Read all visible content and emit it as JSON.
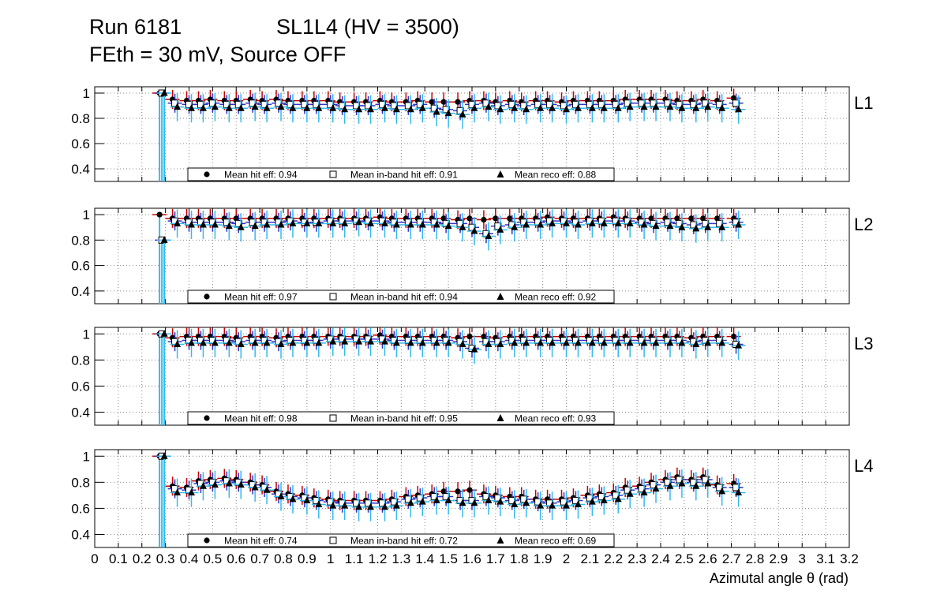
{
  "header": {
    "run": "Run 6181",
    "chamber": "SL1L4 (HV = 3500)",
    "conditions": "FEth = 30 mV, Source OFF"
  },
  "colors": {
    "hit": "#cc0000",
    "inband": "#3333cc",
    "reco": "#33bbee",
    "marker": "#000000",
    "grid": "#888888"
  },
  "chart_data": {
    "type": "scatter",
    "title": "Run 6181   SL1L4 (HV = 3500)   FEth = 30 mV, Source OFF",
    "xlabel": "Azimutal angle θ (rad)",
    "xlim": [
      0,
      3.2
    ],
    "ylim": [
      0.3,
      1.05
    ],
    "x_ticks": [
      "0",
      "0.1",
      "0.2",
      "0.3",
      "0.4",
      "0.5",
      "0.6",
      "0.7",
      "0.8",
      "0.9",
      "1",
      "1.1",
      "1.2",
      "1.3",
      "1.4",
      "1.5",
      "1.6",
      "1.7",
      "1.8",
      "1.9",
      "2",
      "2.1",
      "2.2",
      "2.3",
      "2.4",
      "2.5",
      "2.6",
      "2.7",
      "2.8",
      "2.9",
      "3",
      "3.1",
      "3.2"
    ],
    "y_ticks": [
      "0.4",
      "0.6",
      "0.8",
      "1"
    ],
    "grid": true,
    "x": [
      0.285,
      0.34,
      0.4,
      0.45,
      0.5,
      0.56,
      0.61,
      0.67,
      0.72,
      0.78,
      0.83,
      0.89,
      0.94,
      1.0,
      1.05,
      1.11,
      1.16,
      1.22,
      1.27,
      1.33,
      1.38,
      1.44,
      1.49,
      1.55,
      1.6,
      1.66,
      1.71,
      1.77,
      1.82,
      1.88,
      1.93,
      1.99,
      2.04,
      2.1,
      2.15,
      2.21,
      2.26,
      2.32,
      2.37,
      2.43,
      2.48,
      2.54,
      2.59,
      2.65,
      2.72
    ],
    "panels": [
      {
        "label": "L1",
        "legend": [
          "Mean hit  eff: 0.94",
          "Mean in-band hit eff: 0.91",
          "Mean reco eff: 0.88"
        ],
        "series": [
          {
            "name": "Mean hit  eff",
            "marker": "circle",
            "values": [
              1.0,
              0.95,
              0.94,
              0.94,
              0.95,
              0.94,
              0.94,
              0.95,
              0.94,
              0.95,
              0.94,
              0.94,
              0.94,
              0.94,
              0.93,
              0.93,
              0.93,
              0.94,
              0.93,
              0.93,
              0.94,
              0.93,
              0.93,
              0.93,
              0.94,
              0.94,
              0.93,
              0.94,
              0.93,
              0.94,
              0.94,
              0.93,
              0.94,
              0.94,
              0.94,
              0.94,
              0.95,
              0.95,
              0.95,
              0.95,
              0.94,
              0.94,
              0.95,
              0.94,
              0.96
            ]
          },
          {
            "name": "Mean in-band hit eff",
            "marker": "square",
            "values": [
              1.0,
              0.92,
              0.91,
              0.91,
              0.92,
              0.91,
              0.91,
              0.92,
              0.91,
              0.92,
              0.91,
              0.91,
              0.91,
              0.91,
              0.9,
              0.9,
              0.9,
              0.91,
              0.9,
              0.9,
              0.91,
              0.88,
              0.87,
              0.86,
              0.91,
              0.92,
              0.9,
              0.91,
              0.9,
              0.91,
              0.91,
              0.9,
              0.91,
              0.91,
              0.91,
              0.91,
              0.92,
              0.92,
              0.92,
              0.92,
              0.91,
              0.91,
              0.92,
              0.91,
              0.92
            ]
          },
          {
            "name": "Mean reco eff",
            "marker": "triangle",
            "values": [
              1.0,
              0.89,
              0.88,
              0.88,
              0.89,
              0.88,
              0.88,
              0.89,
              0.88,
              0.89,
              0.88,
              0.88,
              0.88,
              0.88,
              0.87,
              0.87,
              0.87,
              0.88,
              0.87,
              0.87,
              0.88,
              0.85,
              0.84,
              0.83,
              0.88,
              0.89,
              0.87,
              0.88,
              0.87,
              0.88,
              0.88,
              0.87,
              0.88,
              0.88,
              0.88,
              0.88,
              0.89,
              0.89,
              0.89,
              0.89,
              0.88,
              0.88,
              0.89,
              0.88,
              0.87
            ]
          }
        ]
      },
      {
        "label": "L2",
        "legend": [
          "Mean hit  eff: 0.97",
          "Mean in-band hit eff: 0.94",
          "Mean reco eff: 0.92"
        ],
        "series": [
          {
            "name": "Mean hit  eff",
            "marker": "circle",
            "values": [
              1.0,
              0.97,
              0.97,
              0.97,
              0.97,
              0.97,
              0.97,
              0.97,
              0.97,
              0.97,
              0.97,
              0.97,
              0.97,
              0.97,
              0.97,
              0.97,
              0.97,
              0.98,
              0.97,
              0.97,
              0.97,
              0.97,
              0.97,
              0.96,
              0.97,
              0.96,
              0.97,
              0.97,
              0.97,
              0.97,
              0.98,
              0.97,
              0.97,
              0.97,
              0.97,
              0.98,
              0.97,
              0.97,
              0.97,
              0.97,
              0.97,
              0.97,
              0.97,
              0.97,
              0.97
            ]
          },
          {
            "name": "Mean in-band hit eff",
            "marker": "square",
            "values": [
              0.8,
              0.95,
              0.94,
              0.94,
              0.94,
              0.94,
              0.93,
              0.94,
              0.94,
              0.94,
              0.95,
              0.94,
              0.94,
              0.95,
              0.95,
              0.95,
              0.95,
              0.95,
              0.94,
              0.94,
              0.94,
              0.94,
              0.93,
              0.93,
              0.9,
              0.85,
              0.91,
              0.92,
              0.94,
              0.94,
              0.95,
              0.95,
              0.94,
              0.95,
              0.95,
              0.95,
              0.95,
              0.94,
              0.93,
              0.94,
              0.93,
              0.92,
              0.93,
              0.93,
              0.94
            ]
          },
          {
            "name": "Mean reco eff",
            "marker": "triangle",
            "values": [
              0.8,
              0.93,
              0.92,
              0.92,
              0.92,
              0.91,
              0.9,
              0.91,
              0.92,
              0.92,
              0.93,
              0.93,
              0.93,
              0.93,
              0.93,
              0.94,
              0.93,
              0.93,
              0.92,
              0.92,
              0.92,
              0.92,
              0.91,
              0.9,
              0.87,
              0.83,
              0.88,
              0.9,
              0.92,
              0.92,
              0.93,
              0.93,
              0.92,
              0.93,
              0.93,
              0.93,
              0.93,
              0.92,
              0.91,
              0.91,
              0.9,
              0.89,
              0.9,
              0.9,
              0.92
            ]
          }
        ]
      },
      {
        "label": "L3",
        "legend": [
          "Mean hit  eff: 0.98",
          "Mean in-band hit eff: 0.95",
          "Mean reco eff: 0.93"
        ],
        "series": [
          {
            "name": "Mean hit  eff",
            "marker": "circle",
            "values": [
              1.0,
              0.97,
              0.98,
              0.98,
              0.98,
              0.98,
              0.97,
              0.98,
              0.98,
              0.97,
              0.98,
              0.98,
              0.98,
              0.98,
              0.98,
              0.98,
              0.98,
              0.99,
              0.98,
              0.98,
              0.98,
              0.98,
              0.98,
              0.97,
              0.98,
              0.98,
              0.97,
              0.98,
              0.98,
              0.98,
              0.98,
              0.98,
              0.98,
              0.98,
              0.98,
              0.98,
              0.98,
              0.98,
              0.98,
              0.98,
              0.98,
              0.97,
              0.98,
              0.98,
              0.98
            ]
          },
          {
            "name": "Mean in-band hit eff",
            "marker": "square",
            "values": [
              1.0,
              0.94,
              0.95,
              0.95,
              0.95,
              0.95,
              0.94,
              0.95,
              0.95,
              0.94,
              0.95,
              0.95,
              0.95,
              0.96,
              0.96,
              0.96,
              0.96,
              0.96,
              0.95,
              0.95,
              0.95,
              0.95,
              0.95,
              0.94,
              0.89,
              0.94,
              0.94,
              0.95,
              0.95,
              0.95,
              0.95,
              0.95,
              0.95,
              0.95,
              0.95,
              0.95,
              0.95,
              0.95,
              0.95,
              0.95,
              0.95,
              0.94,
              0.95,
              0.95,
              0.92
            ]
          },
          {
            "name": "Mean reco eff",
            "marker": "triangle",
            "values": [
              1.0,
              0.92,
              0.93,
              0.93,
              0.93,
              0.93,
              0.92,
              0.93,
              0.93,
              0.92,
              0.93,
              0.93,
              0.93,
              0.94,
              0.94,
              0.94,
              0.94,
              0.94,
              0.93,
              0.93,
              0.93,
              0.93,
              0.93,
              0.92,
              0.88,
              0.92,
              0.92,
              0.93,
              0.93,
              0.93,
              0.93,
              0.93,
              0.93,
              0.93,
              0.93,
              0.93,
              0.93,
              0.93,
              0.93,
              0.93,
              0.93,
              0.92,
              0.93,
              0.93,
              0.91
            ]
          }
        ]
      },
      {
        "label": "L4",
        "legend": [
          "Mean hit  eff: 0.74",
          "Mean in-band hit eff: 0.72",
          "Mean reco eff: 0.69"
        ],
        "series": [
          {
            "name": "Mean hit  eff",
            "marker": "circle",
            "values": [
              1.0,
              0.77,
              0.76,
              0.81,
              0.82,
              0.83,
              0.82,
              0.8,
              0.78,
              0.73,
              0.71,
              0.7,
              0.68,
              0.67,
              0.66,
              0.66,
              0.66,
              0.66,
              0.67,
              0.69,
              0.7,
              0.71,
              0.73,
              0.73,
              0.74,
              0.71,
              0.7,
              0.69,
              0.69,
              0.67,
              0.67,
              0.67,
              0.68,
              0.7,
              0.71,
              0.72,
              0.76,
              0.77,
              0.8,
              0.82,
              0.84,
              0.82,
              0.84,
              0.78,
              0.79
            ]
          },
          {
            "name": "Mean in-band hit eff",
            "marker": "square",
            "values": [
              1.0,
              0.75,
              0.74,
              0.79,
              0.8,
              0.81,
              0.8,
              0.78,
              0.76,
              0.71,
              0.69,
              0.68,
              0.66,
              0.65,
              0.64,
              0.64,
              0.64,
              0.64,
              0.65,
              0.67,
              0.68,
              0.69,
              0.69,
              0.66,
              0.66,
              0.69,
              0.68,
              0.66,
              0.67,
              0.65,
              0.64,
              0.65,
              0.66,
              0.68,
              0.69,
              0.7,
              0.74,
              0.75,
              0.78,
              0.8,
              0.82,
              0.8,
              0.82,
              0.76,
              0.76
            ]
          },
          {
            "name": "Mean reco eff",
            "marker": "triangle",
            "values": [
              1.0,
              0.72,
              0.72,
              0.77,
              0.78,
              0.79,
              0.78,
              0.76,
              0.74,
              0.69,
              0.67,
              0.66,
              0.63,
              0.62,
              0.62,
              0.61,
              0.61,
              0.61,
              0.62,
              0.64,
              0.65,
              0.66,
              0.66,
              0.64,
              0.64,
              0.66,
              0.65,
              0.63,
              0.64,
              0.62,
              0.62,
              0.62,
              0.63,
              0.65,
              0.66,
              0.67,
              0.71,
              0.72,
              0.75,
              0.77,
              0.79,
              0.77,
              0.79,
              0.73,
              0.72
            ]
          }
        ]
      }
    ]
  }
}
